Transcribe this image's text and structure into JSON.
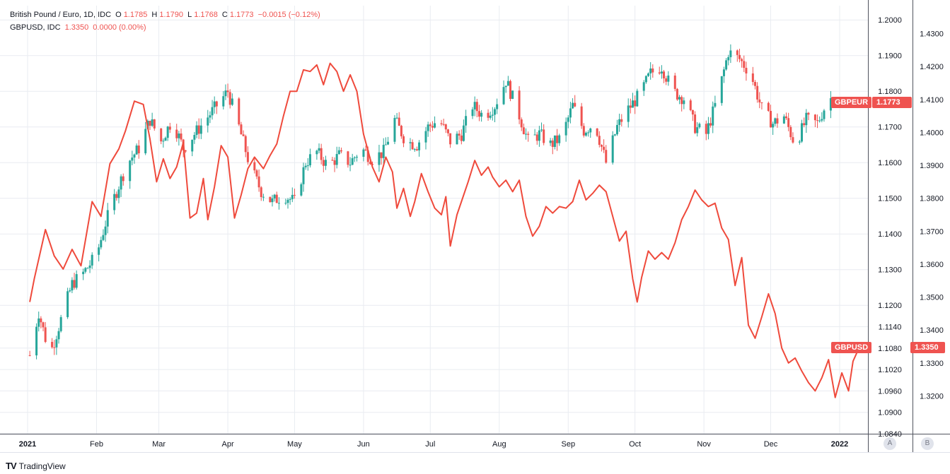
{
  "legend": {
    "main": {
      "title": "British Pound / Euro, 1D, IDC",
      "o_label": "O",
      "o_value": "1.1785",
      "h_label": "H",
      "h_value": "1.1790",
      "l_label": "L",
      "l_value": "1.1768",
      "c_label": "C",
      "c_value": "1.1773",
      "change": "−0.0015 (−0.12%)"
    },
    "compare": {
      "title": "GBPUSD, IDC",
      "value": "1.3350",
      "change": "0.0000 (0.00%)"
    }
  },
  "tags": {
    "gbpeur_symbol": "GBPEUR",
    "gbpeur_price": "1.1773",
    "gbpusd_symbol": "GBPUSD",
    "gbpusd_price": "1.3350"
  },
  "scale_buttons": {
    "a": "A",
    "b": "B"
  },
  "brand": {
    "name": "TradingView",
    "logo": "TV"
  },
  "colors": {
    "up": "#26a69a",
    "down": "#ef5350",
    "line": "#ef4a3c",
    "grid": "#e9ecf1",
    "text": "#131722"
  },
  "chart_data": {
    "type": "candlestick+line",
    "x_ticks": [
      "2021",
      "Feb",
      "Mar",
      "Apr",
      "May",
      "Jun",
      "Jul",
      "Aug",
      "Sep",
      "Oct",
      "Nov",
      "Dec",
      "2022"
    ],
    "left_axis_ticks": [
      "1.2000",
      "1.1900",
      "1.1800",
      "1.1700",
      "1.1600",
      "1.1500",
      "1.1400",
      "1.1300",
      "1.1200",
      "1.1140",
      "1.1080",
      "1.1020",
      "1.0960",
      "1.0900",
      "1.0840"
    ],
    "right_axis_ticks": [
      "1.4300",
      "1.4200",
      "1.4100",
      "1.4000",
      "1.3900",
      "1.3800",
      "1.3700",
      "1.3600",
      "1.3500",
      "1.3400",
      "1.3300",
      "1.3200"
    ],
    "left_range": [
      1.084,
      1.204
    ],
    "right_range": [
      1.3085,
      1.4385
    ],
    "series": [
      {
        "name": "GBPEUR",
        "kind": "candlestick",
        "close": [
          [
            1,
            1.106
          ],
          [
            5,
            1.118
          ],
          [
            10,
            1.106
          ],
          [
            15,
            1.116
          ],
          [
            20,
            1.126
          ],
          [
            25,
            1.129
          ],
          [
            31,
            1.134
          ],
          [
            35,
            1.143
          ],
          [
            40,
            1.152
          ],
          [
            45,
            1.16
          ],
          [
            50,
            1.164
          ],
          [
            55,
            1.172
          ],
          [
            60,
            1.166
          ],
          [
            65,
            1.172
          ],
          [
            70,
            1.164
          ],
          [
            75,
            1.168
          ],
          [
            80,
            1.172
          ],
          [
            85,
            1.176
          ],
          [
            90,
            1.18
          ],
          [
            95,
            1.17
          ],
          [
            100,
            1.159
          ],
          [
            105,
            1.152
          ],
          [
            110,
            1.149
          ],
          [
            115,
            1.151
          ],
          [
            120,
            1.149
          ],
          [
            125,
            1.16
          ],
          [
            130,
            1.163
          ],
          [
            135,
            1.159
          ],
          [
            140,
            1.162
          ],
          [
            145,
            1.16
          ],
          [
            150,
            1.164
          ],
          [
            155,
            1.161
          ],
          [
            160,
            1.163
          ],
          [
            165,
            1.172
          ],
          [
            170,
            1.166
          ],
          [
            175,
            1.165
          ],
          [
            180,
            1.17
          ],
          [
            185,
            1.172
          ],
          [
            190,
            1.166
          ],
          [
            195,
            1.168
          ],
          [
            200,
            1.176
          ],
          [
            205,
            1.173
          ],
          [
            210,
            1.176
          ],
          [
            215,
            1.183
          ],
          [
            220,
            1.175
          ],
          [
            225,
            1.166
          ],
          [
            230,
            1.168
          ],
          [
            235,
            1.165
          ],
          [
            240,
            1.167
          ],
          [
            245,
            1.176
          ],
          [
            250,
            1.169
          ],
          [
            255,
            1.171
          ],
          [
            260,
            1.16
          ],
          [
            265,
            1.17
          ],
          [
            270,
            1.175
          ],
          [
            275,
            1.179
          ],
          [
            280,
            1.185
          ],
          [
            285,
            1.187
          ],
          [
            290,
            1.18
          ],
          [
            295,
            1.178
          ],
          [
            300,
            1.17
          ],
          [
            305,
            1.168
          ],
          [
            310,
            1.178
          ],
          [
            315,
            1.191
          ],
          [
            320,
            1.189
          ],
          [
            325,
            1.185
          ],
          [
            330,
            1.175
          ],
          [
            335,
            1.171
          ],
          [
            340,
            1.173
          ],
          [
            345,
            1.165
          ],
          [
            350,
            1.172
          ],
          [
            355,
            1.171
          ],
          [
            360,
            1.178
          ]
        ]
      },
      {
        "name": "GBPUSD",
        "kind": "line",
        "close": [
          [
            1,
            1.3485
          ],
          [
            3,
            1.3555
          ],
          [
            8,
            1.3705
          ],
          [
            12,
            1.3625
          ],
          [
            16,
            1.3585
          ],
          [
            20,
            1.3645
          ],
          [
            24,
            1.3595
          ],
          [
            29,
            1.379
          ],
          [
            33,
            1.3745
          ],
          [
            37,
            1.3905
          ],
          [
            41,
            1.395
          ],
          [
            44,
            1.4005
          ],
          [
            48,
            1.4095
          ],
          [
            52,
            1.4085
          ],
          [
            55,
            1.398
          ],
          [
            58,
            1.385
          ],
          [
            61,
            1.392
          ],
          [
            64,
            1.386
          ],
          [
            67,
            1.3895
          ],
          [
            70,
            1.397
          ],
          [
            73,
            1.374
          ],
          [
            76,
            1.3755
          ],
          [
            79,
            1.386
          ],
          [
            81,
            1.3735
          ],
          [
            84,
            1.3835
          ],
          [
            87,
            1.396
          ],
          [
            90,
            1.3925
          ],
          [
            93,
            1.374
          ],
          [
            96,
            1.381
          ],
          [
            99,
            1.389
          ],
          [
            102,
            1.3925
          ],
          [
            106,
            1.389
          ],
          [
            109,
            1.393
          ],
          [
            112,
            1.3965
          ],
          [
            115,
            1.405
          ],
          [
            118,
            1.4125
          ],
          [
            121,
            1.4125
          ],
          [
            124,
            1.419
          ],
          [
            127,
            1.4185
          ],
          [
            130,
            1.4205
          ],
          [
            133,
            1.4145
          ],
          [
            136,
            1.421
          ],
          [
            139,
            1.4185
          ],
          [
            142,
            1.4125
          ],
          [
            145,
            1.4175
          ],
          [
            148,
            1.4125
          ],
          [
            151,
            1.3995
          ],
          [
            155,
            1.3895
          ],
          [
            158,
            1.385
          ],
          [
            161,
            1.3925
          ],
          [
            164,
            1.388
          ],
          [
            166,
            1.377
          ],
          [
            169,
            1.383
          ],
          [
            172,
            1.3745
          ],
          [
            174,
            1.379
          ],
          [
            177,
            1.3875
          ],
          [
            180,
            1.382
          ],
          [
            183,
            1.377
          ],
          [
            186,
            1.375
          ],
          [
            188,
            1.3805
          ],
          [
            190,
            1.3655
          ],
          [
            193,
            1.375
          ],
          [
            196,
            1.381
          ],
          [
            198,
            1.385
          ],
          [
            201,
            1.3915
          ],
          [
            204,
            1.387
          ],
          [
            207,
            1.3895
          ],
          [
            209,
            1.3865
          ],
          [
            212,
            1.3835
          ],
          [
            215,
            1.3855
          ],
          [
            218,
            1.382
          ],
          [
            221,
            1.3855
          ],
          [
            224,
            1.3745
          ],
          [
            227,
            1.3685
          ],
          [
            230,
            1.3715
          ],
          [
            233,
            1.3775
          ],
          [
            236,
            1.3755
          ],
          [
            239,
            1.3775
          ],
          [
            242,
            1.377
          ],
          [
            245,
            1.379
          ],
          [
            248,
            1.3855
          ],
          [
            251,
            1.3795
          ],
          [
            254,
            1.3815
          ],
          [
            257,
            1.384
          ],
          [
            260,
            1.382
          ],
          [
            263,
            1.3745
          ],
          [
            266,
            1.367
          ],
          [
            269,
            1.37
          ],
          [
            272,
            1.3555
          ],
          [
            274,
            1.3485
          ],
          [
            276,
            1.356
          ],
          [
            279,
            1.364
          ],
          [
            282,
            1.3615
          ],
          [
            285,
            1.3635
          ],
          [
            288,
            1.3615
          ],
          [
            291,
            1.3665
          ],
          [
            294,
            1.3735
          ],
          [
            297,
            1.3775
          ],
          [
            300,
            1.3825
          ],
          [
            303,
            1.3795
          ],
          [
            306,
            1.3775
          ],
          [
            309,
            1.3785
          ],
          [
            312,
            1.371
          ],
          [
            315,
            1.3675
          ],
          [
            318,
            1.3535
          ],
          [
            321,
            1.362
          ],
          [
            324,
            1.3415
          ],
          [
            327,
            1.3375
          ],
          [
            330,
            1.344
          ],
          [
            333,
            1.351
          ],
          [
            336,
            1.345
          ],
          [
            339,
            1.3345
          ],
          [
            342,
            1.33
          ],
          [
            345,
            1.3315
          ],
          [
            348,
            1.3275
          ],
          [
            351,
            1.324
          ],
          [
            354,
            1.3215
          ],
          [
            357,
            1.3255
          ],
          [
            360,
            1.331
          ],
          [
            363,
            1.3195
          ],
          [
            366,
            1.327
          ],
          [
            369,
            1.3215
          ],
          [
            371,
            1.3305
          ],
          [
            374,
            1.335
          ],
          [
            377,
            1.335
          ]
        ]
      }
    ]
  }
}
